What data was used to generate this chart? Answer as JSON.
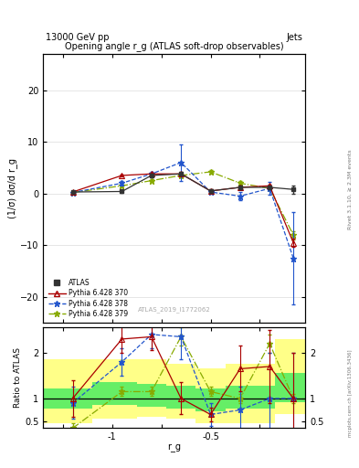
{
  "top_title": "13000 GeV pp",
  "top_right_label": "Jets",
  "plot_title": "Opening angle r_g (ATLAS soft-drop observables)",
  "ylabel_main": "(1/σ) dσ/d r_g",
  "ylabel_ratio": "Ratio to ATLAS",
  "xlabel": "r_g",
  "right_label_main": "Rivet 3.1.10, ≥ 2.3M events",
  "right_label_ratio": "mcplots.cern.ch [arXiv:1306.3436]",
  "watermark": "ATLAS_2019_I1772062",
  "xlim": [
    -1.35,
    -0.02
  ],
  "ylim_main": [
    -25,
    27
  ],
  "ylim_ratio": [
    0.35,
    2.55
  ],
  "xticks": [
    -1.25,
    -1.0,
    -0.75,
    -0.5,
    -0.25
  ],
  "xticklabels": [
    "",
    "-1",
    "",
    "-0.5",
    ""
  ],
  "atlas_x": [
    -1.2,
    -0.95,
    -0.8,
    -0.65,
    -0.5,
    -0.35,
    -0.2,
    -0.08
  ],
  "atlas_y": [
    0.3,
    0.4,
    3.5,
    3.8,
    0.5,
    1.2,
    1.2,
    0.8
  ],
  "atlas_yerr": [
    0.2,
    0.3,
    0.35,
    0.35,
    0.4,
    0.4,
    0.4,
    0.8
  ],
  "pythia370_x": [
    -1.2,
    -0.95,
    -0.8,
    -0.65,
    -0.5,
    -0.35,
    -0.2,
    -0.08
  ],
  "pythia370_y": [
    0.3,
    3.5,
    3.8,
    3.8,
    0.5,
    1.2,
    1.5,
    -9.5
  ],
  "pythia370_yerr": [
    0.15,
    0.25,
    0.25,
    0.3,
    0.25,
    0.3,
    0.3,
    0.8
  ],
  "pythia378_x": [
    -1.2,
    -0.95,
    -0.8,
    -0.65,
    -0.5,
    -0.35,
    -0.2,
    -0.08
  ],
  "pythia378_y": [
    0.2,
    2.0,
    3.8,
    6.0,
    0.3,
    -0.5,
    1.0,
    -12.5
  ],
  "pythia378_yerr": [
    0.15,
    0.4,
    0.4,
    3.5,
    0.4,
    0.8,
    1.2,
    9.0
  ],
  "pythia379_x": [
    -1.2,
    -0.95,
    -0.8,
    -0.65,
    -0.5,
    -0.35,
    -0.2,
    -0.08
  ],
  "pythia379_y": [
    0.2,
    1.5,
    2.5,
    3.5,
    4.2,
    2.0,
    1.0,
    -8.0
  ],
  "pythia379_yerr": [
    0.15,
    0.25,
    0.25,
    0.4,
    0.4,
    0.4,
    0.4,
    0.8
  ],
  "ratio370_x": [
    -1.2,
    -0.95,
    -0.8,
    -0.65,
    -0.5,
    -0.35,
    -0.2,
    -0.08
  ],
  "ratio370_y": [
    1.0,
    2.3,
    2.35,
    1.0,
    0.65,
    1.65,
    1.7,
    1.0
  ],
  "ratio370_yerr": [
    0.4,
    0.3,
    0.3,
    0.35,
    0.15,
    0.5,
    0.8,
    1.0
  ],
  "ratio378_x": [
    -1.2,
    -0.95,
    -0.8,
    -0.65,
    -0.5,
    -0.35,
    -0.2,
    -0.08
  ],
  "ratio378_y": [
    0.9,
    1.8,
    2.4,
    2.35,
    0.65,
    0.75,
    1.0,
    1.0
  ],
  "ratio378_yerr": [
    0.35,
    0.3,
    0.3,
    0.5,
    0.25,
    0.5,
    1.0,
    1.0
  ],
  "ratio379_x": [
    -1.2,
    -0.95,
    -0.8,
    -0.65,
    -0.5,
    -0.35,
    -0.2,
    -0.08
  ],
  "ratio379_y": [
    0.35,
    1.15,
    1.15,
    2.35,
    1.15,
    1.0,
    2.2,
    1.0
  ],
  "ratio379_yerr": [
    0.1,
    0.1,
    0.1,
    0.2,
    0.1,
    0.1,
    0.2,
    0.1
  ],
  "band_x_edges": [
    -1.35,
    -1.1,
    -0.875,
    -0.725,
    -0.575,
    -0.425,
    -0.3,
    -0.175,
    -0.02
  ],
  "band_yellow_lo": [
    0.45,
    0.55,
    0.6,
    0.55,
    0.45,
    0.45,
    0.45,
    0.65
  ],
  "band_yellow_hi": [
    1.85,
    1.85,
    1.85,
    1.75,
    1.65,
    1.75,
    1.75,
    2.3
  ],
  "band_green_lo": [
    0.78,
    0.85,
    0.82,
    0.78,
    0.72,
    0.78,
    0.78,
    0.92
  ],
  "band_green_hi": [
    1.22,
    1.35,
    1.32,
    1.28,
    1.22,
    1.28,
    1.28,
    1.55
  ],
  "color_atlas": "#333333",
  "color_370": "#aa0000",
  "color_378": "#2255cc",
  "color_379": "#88aa00",
  "color_yellow": "#ffff88",
  "color_green": "#66ee66"
}
